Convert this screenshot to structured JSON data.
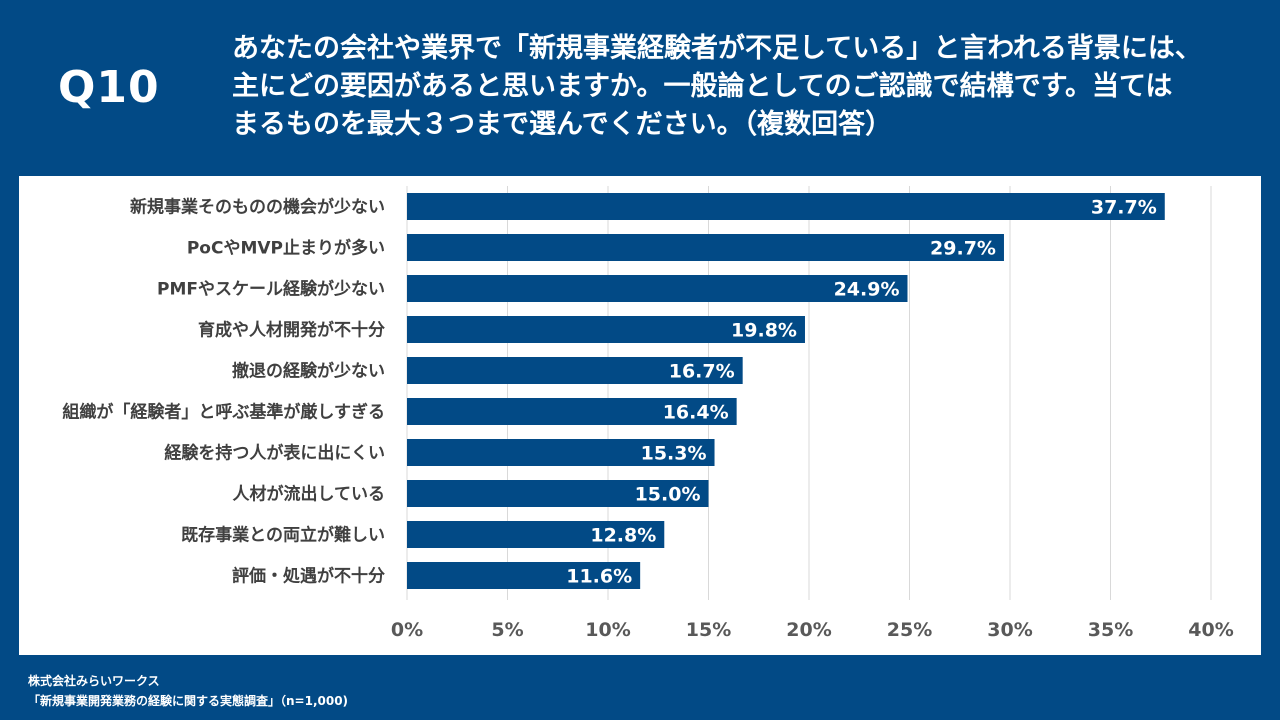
{
  "header": {
    "question_number": "Q10",
    "question_lines": [
      "あなたの会社や業界で「新規事業経験者が不足している」と言われる背景には、",
      "主にどの要因があると思いますか。一般論としてのご認識で結構です。当ては",
      "まるものを最大３つまで選んでください。（複数回答）"
    ]
  },
  "colors": {
    "background": "#024A86",
    "bar": "#024A86",
    "label_text": "#404040",
    "axis_text": "#595959",
    "grid": "#D9D9D9"
  },
  "chart_data": {
    "type": "bar",
    "orientation": "horizontal",
    "title": "",
    "xlabel": "",
    "ylabel": "",
    "categories": [
      "新規事業そのものの機会が少ない",
      "PoCやMVP止まりが多い",
      "PMFやスケール経験が少ない",
      "育成や人材開発が不十分",
      "撤退の経験が少ない",
      "組織が「経験者」と呼ぶ基準が厳しすぎる",
      "経験を持つ人が表に出にくい",
      "人材が流出している",
      "既存事業との両立が難しい",
      "評価・処遇が不十分"
    ],
    "values": [
      37.7,
      29.7,
      24.9,
      19.8,
      16.7,
      16.4,
      15.3,
      15.0,
      12.8,
      11.6
    ],
    "data_labels": [
      "37.7%",
      "29.7%",
      "24.9%",
      "19.8%",
      "16.7%",
      "16.4%",
      "15.3%",
      "15.0%",
      "12.8%",
      "11.6%"
    ],
    "xlim": [
      0,
      40
    ],
    "xticks": [
      0,
      5,
      10,
      15,
      20,
      25,
      30,
      35,
      40
    ],
    "xtick_labels": [
      "0%",
      "5%",
      "10%",
      "15%",
      "20%",
      "25%",
      "30%",
      "35%",
      "40%"
    ],
    "grid": true,
    "legend": "none"
  },
  "footer": {
    "company": "株式会社みらいワークス",
    "survey": "「新規事業開発業務の経験に関する実態調査」（n=1,000)"
  }
}
